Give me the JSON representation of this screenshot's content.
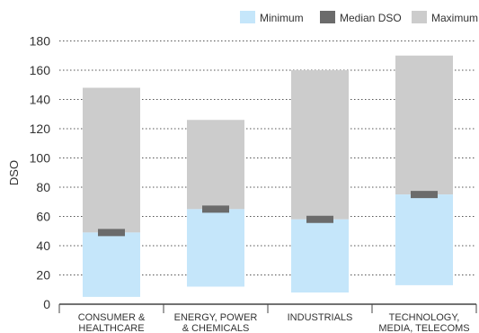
{
  "chart_data": {
    "type": "bar",
    "title": "",
    "xlabel": "",
    "ylabel": "DSO",
    "ylim": [
      0,
      190
    ],
    "yticks": [
      0,
      20,
      40,
      60,
      80,
      100,
      120,
      140,
      160,
      180
    ],
    "grid": true,
    "legend_position": "top-right",
    "categories": [
      [
        "CONSUMER &",
        "HEALTHCARE"
      ],
      [
        "ENERGY, POWER",
        "& CHEMICALS"
      ],
      [
        "INDUSTRIALS"
      ],
      [
        "TECHNOLOGY,",
        "MEDIA, TELECOMS"
      ]
    ],
    "series": [
      {
        "name": "Minimum",
        "color": "#c5e6fa",
        "values": [
          5,
          12,
          8,
          13
        ]
      },
      {
        "name": "Median DSO",
        "color": "#6b6b6b",
        "values": [
          49,
          65,
          58,
          75
        ]
      },
      {
        "name": "Maximum",
        "color": "#cccccc",
        "values": [
          148,
          126,
          160,
          170
        ]
      }
    ]
  }
}
